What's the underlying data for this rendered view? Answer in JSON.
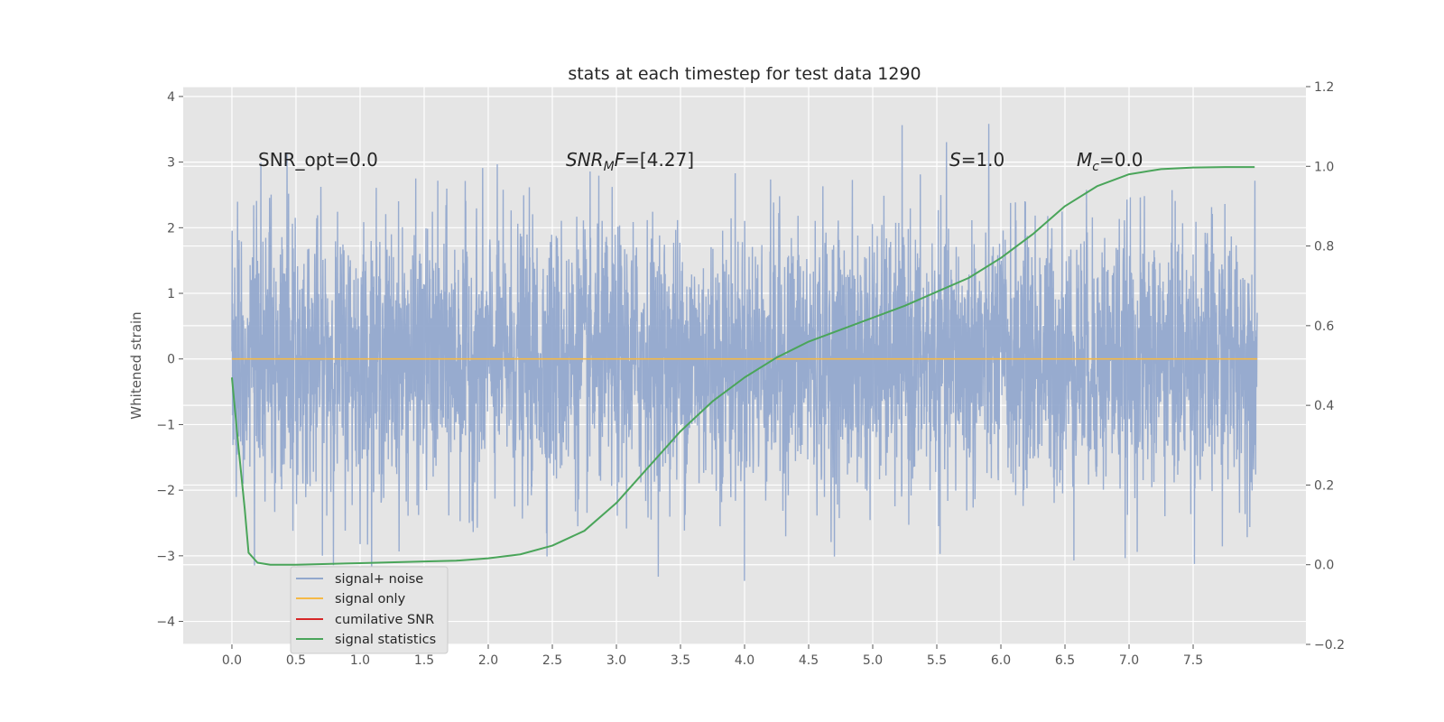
{
  "chart_data": {
    "type": "line",
    "title": "stats at each timestep for test data 1290",
    "ylabel": "Whitened strain",
    "xlim": [
      -0.38,
      8.38
    ],
    "ylim": [
      -4.35,
      4.15
    ],
    "y2lim": [
      -0.2,
      1.2
    ],
    "x_ticks": [
      0.0,
      0.5,
      1.0,
      1.5,
      2.0,
      2.5,
      3.0,
      3.5,
      4.0,
      4.5,
      5.0,
      5.5,
      6.0,
      6.5,
      7.0,
      7.5
    ],
    "x_tick_labels": [
      "0.0",
      "0.5",
      "1.0",
      "1.5",
      "2.0",
      "2.5",
      "3.0",
      "3.5",
      "4.0",
      "4.5",
      "5.0",
      "5.5",
      "6.0",
      "6.5",
      "7.0",
      "7.5"
    ],
    "y_ticks": [
      -4,
      -3,
      -2,
      -1,
      0,
      1,
      2,
      3,
      4
    ],
    "y_tick_labels": [
      "−4",
      "−3",
      "−2",
      "−1",
      "0",
      "1",
      "2",
      "3",
      "4"
    ],
    "y2_ticks": [
      -0.2,
      0.0,
      0.2,
      0.4,
      0.6,
      0.8,
      1.0,
      1.2
    ],
    "y2_tick_labels": [
      "−0.2",
      "0.0",
      "0.2",
      "0.4",
      "0.6",
      "0.8",
      "1.0",
      "1.2"
    ],
    "grid": true,
    "legend_position": "lower-left",
    "annotations": {
      "snr_opt": "SNR_opt=0.0",
      "snr_mf_label": "SNR",
      "snr_mf_sub": "M",
      "snr_mf_label2": "F",
      "snr_mf_value": "=[4.27]",
      "s_label": "S",
      "s_value": "=1.0",
      "mc_label": "M",
      "mc_sub": "c",
      "mc_value": "=0.0"
    },
    "series": [
      {
        "name": "signal+ noise",
        "color": "#92a8cd",
        "axis": "left",
        "x_range": [
          0.0,
          8.0
        ],
        "amplitude_std": 1.0,
        "y_extremes": {
          "min": -4.0,
          "max": 3.8
        }
      },
      {
        "name": "signal only",
        "color": "#f5b946",
        "axis": "left",
        "x": [
          0.0,
          8.0
        ],
        "y": [
          0.0,
          0.0
        ]
      },
      {
        "name": "cumilative SNR",
        "color": "#d62728",
        "axis": "right",
        "x": [],
        "y": []
      },
      {
        "name": "signal statistics",
        "color": "#4aa55a",
        "axis": "right",
        "x": [
          0.0,
          0.05,
          0.1,
          0.13,
          0.2,
          0.3,
          0.5,
          1.0,
          1.5,
          1.75,
          2.0,
          2.25,
          2.5,
          2.75,
          3.0,
          3.25,
          3.5,
          3.75,
          4.0,
          4.25,
          4.5,
          4.75,
          5.0,
          5.25,
          5.5,
          5.75,
          6.0,
          6.25,
          6.5,
          6.75,
          7.0,
          7.25,
          7.5,
          7.75,
          7.98
        ],
        "y": [
          0.47,
          0.3,
          0.14,
          0.03,
          0.005,
          0.0,
          0.0,
          0.004,
          0.008,
          0.01,
          0.016,
          0.026,
          0.048,
          0.085,
          0.155,
          0.245,
          0.335,
          0.41,
          0.47,
          0.52,
          0.56,
          0.59,
          0.62,
          0.65,
          0.685,
          0.72,
          0.77,
          0.83,
          0.9,
          0.95,
          0.98,
          0.993,
          0.997,
          0.998,
          0.998
        ]
      }
    ]
  }
}
